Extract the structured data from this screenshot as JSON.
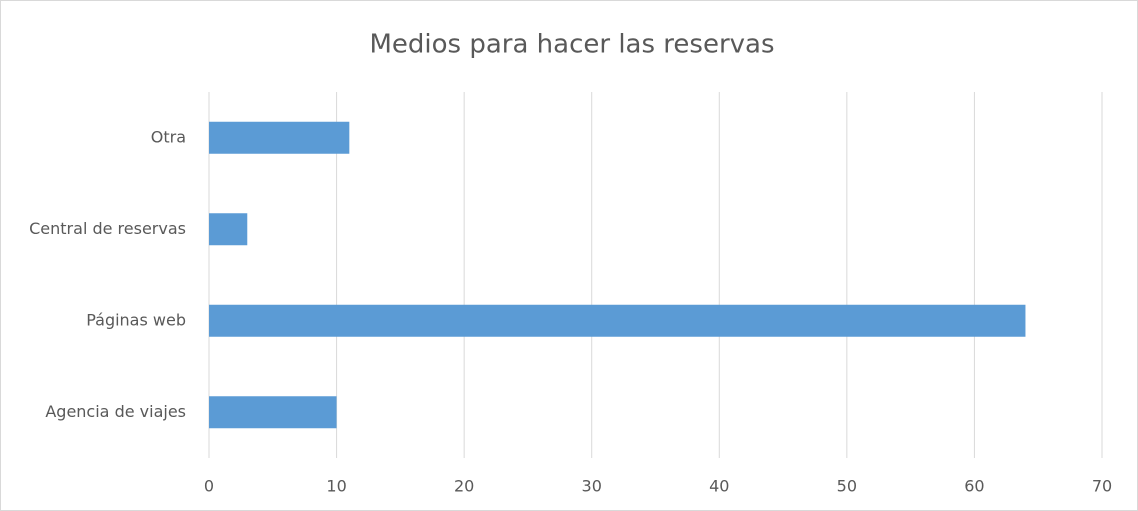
{
  "chart_data": {
    "type": "barh",
    "title": "Medios para hacer las reservas",
    "categories": [
      "Otra",
      "Central de reservas",
      "Páginas web",
      "Agencia de viajes"
    ],
    "values": [
      11,
      3,
      64,
      10
    ],
    "color": "#5b9bd5",
    "xlim": [
      0,
      70
    ],
    "xticks": [
      0,
      10,
      20,
      30,
      40,
      50,
      60,
      70
    ],
    "grid": true
  }
}
